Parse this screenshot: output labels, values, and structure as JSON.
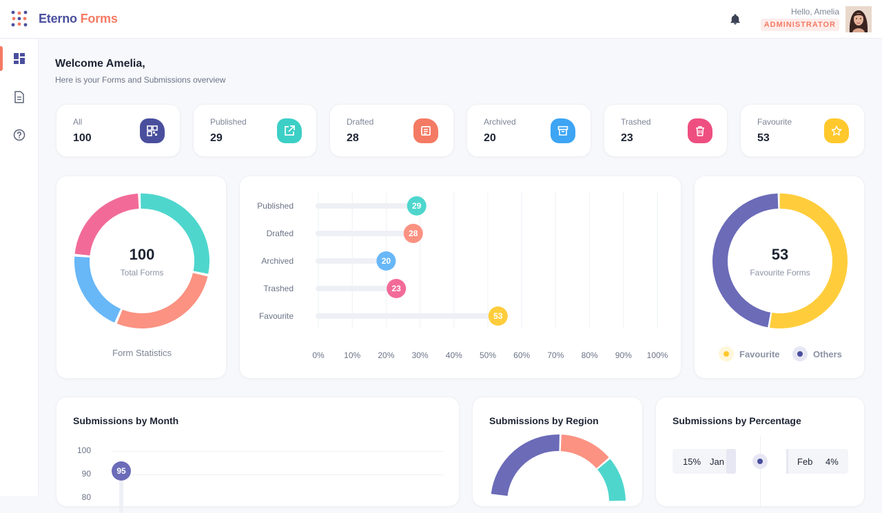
{
  "brand": {
    "part1": "Eterno",
    "part2": "Forms"
  },
  "user": {
    "greeting": "Hello, Amelia",
    "role": "ADMINISTRATOR"
  },
  "welcome": {
    "title": "Welcome Amelia,",
    "subtitle": "Here is your Forms and Submissions overview"
  },
  "sidebar": {
    "items": [
      {
        "icon": "dashboard-icon",
        "active": true
      },
      {
        "icon": "document-icon",
        "active": false
      },
      {
        "icon": "help-icon",
        "active": false
      }
    ]
  },
  "stats": [
    {
      "label": "All",
      "value": "100",
      "icon": "grid-icon",
      "color": "#4a4f9d"
    },
    {
      "label": "Published",
      "value": "29",
      "icon": "external-link-icon",
      "color": "#3ccfc6"
    },
    {
      "label": "Drafted",
      "value": "28",
      "icon": "note-icon",
      "color": "#f47a63"
    },
    {
      "label": "Archived",
      "value": "20",
      "icon": "archive-icon",
      "color": "#3da5f4"
    },
    {
      "label": "Trashed",
      "value": "23",
      "icon": "trash-icon",
      "color": "#ee4f80"
    },
    {
      "label": "Favourite",
      "value": "53",
      "icon": "star-icon",
      "color": "#ffc82c"
    }
  ],
  "form_stats": {
    "total": "100",
    "total_label": "Total Forms",
    "footer": "Form Statistics"
  },
  "favourite": {
    "value": "53",
    "label": "Favourite Forms",
    "legend": [
      "Favourite",
      "Others"
    ]
  },
  "bottom": {
    "month_title": "Submissions by Month",
    "region_title": "Submissions by Region",
    "percentage_title": "Submissions by Percentage",
    "y_ticks": [
      "100",
      "90",
      "80"
    ],
    "month_marker": "95",
    "pct_rows": [
      {
        "left_pct": "15%",
        "left_month": "Jan",
        "right_month": "Feb",
        "right_pct": "4%"
      }
    ]
  },
  "chart_data": [
    {
      "type": "pie",
      "title": "Form Statistics",
      "labels": [
        "Published",
        "Drafted",
        "Archived",
        "Trashed"
      ],
      "values": [
        29,
        28,
        20,
        23
      ],
      "colors": [
        "#4ed6cd",
        "#fb9282",
        "#68b7f7",
        "#f26b98"
      ]
    },
    {
      "type": "bar",
      "orientation": "horizontal",
      "categories": [
        "Published",
        "Drafted",
        "Archived",
        "Trashed",
        "Favourite"
      ],
      "values": [
        29,
        28,
        20,
        23,
        53
      ],
      "colors": [
        "#4ed6cd",
        "#fb9282",
        "#68b7f7",
        "#f26b98",
        "#ffcd3c"
      ],
      "x_ticks": [
        "0%",
        "10%",
        "20%",
        "30%",
        "40%",
        "50%",
        "60%",
        "70%",
        "80%",
        "90%",
        "100%"
      ],
      "xlim": [
        0,
        100
      ]
    },
    {
      "type": "pie",
      "title": "Favourite Forms",
      "labels": [
        "Favourite",
        "Others"
      ],
      "values": [
        53,
        47
      ],
      "colors": [
        "#ffcd3c",
        "#6b6bb8"
      ]
    },
    {
      "type": "line",
      "title": "Submissions by Month",
      "y_ticks": [
        100,
        90,
        80
      ],
      "values": [
        95
      ]
    },
    {
      "type": "pie",
      "title": "Submissions by Region",
      "colors": [
        "#6b6bb8",
        "#fb9282",
        "#4ed6cd"
      ]
    }
  ]
}
